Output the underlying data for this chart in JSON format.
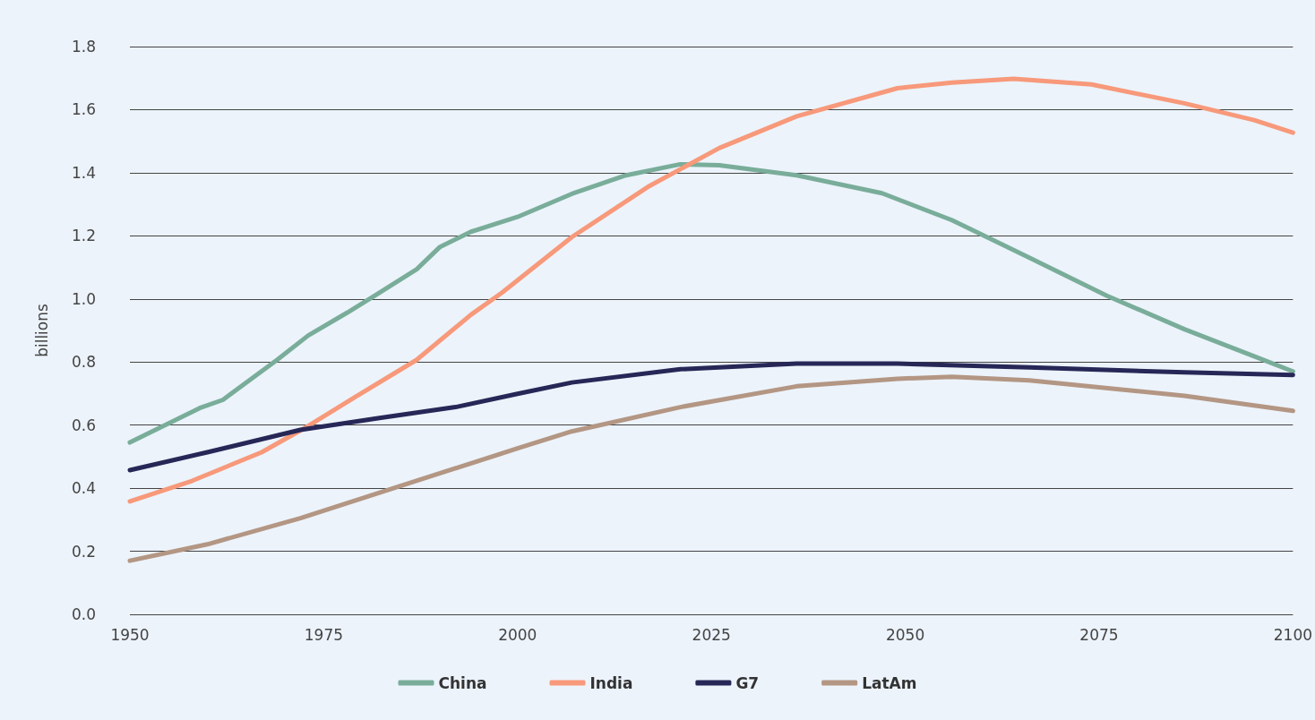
{
  "chart_data": {
    "type": "line",
    "ylabel": "billions",
    "xlim": [
      1950,
      2100
    ],
    "xticks": [
      1950,
      1975,
      2000,
      2025,
      2050,
      2075,
      2100
    ],
    "ylim": [
      0,
      1.8
    ],
    "yticks": [
      {
        "value": 0,
        "label": "0.0"
      },
      0.2,
      0.4,
      0.6,
      0.8,
      {
        "value": 1,
        "label": "1.0"
      },
      1.2,
      1.4,
      1.6,
      1.8
    ],
    "grid": "y",
    "legend": "bottom",
    "marker": "none",
    "line_style": "solid",
    "series": [
      {
        "name": "China",
        "color": "#79ad9a",
        "x": [
          1950,
          1959,
          1962,
          1969,
          1973,
          1978,
          1982,
          1987,
          1990,
          1994,
          2000,
          2007,
          2014,
          2021,
          2026,
          2036,
          2047,
          2056,
          2066,
          2076,
          2086,
          2095,
          2100
        ],
        "values": [
          0.545,
          0.654,
          0.68,
          0.807,
          0.884,
          0.956,
          1.017,
          1.094,
          1.165,
          1.213,
          1.26,
          1.333,
          1.392,
          1.427,
          1.424,
          1.392,
          1.335,
          1.25,
          1.131,
          1.01,
          0.904,
          0.818,
          0.77
        ]
      },
      {
        "name": "India",
        "color": "#f7997a",
        "x": [
          1950,
          1958,
          1967,
          1973,
          1979,
          1987,
          1994,
          1998,
          2007,
          2017,
          2026,
          2036,
          2049,
          2056,
          2064,
          2074,
          2086,
          2095,
          2100
        ],
        "values": [
          0.358,
          0.423,
          0.514,
          0.597,
          0.688,
          0.807,
          0.95,
          1.02,
          1.196,
          1.358,
          1.478,
          1.579,
          1.668,
          1.686,
          1.698,
          1.68,
          1.62,
          1.567,
          1.527
        ]
      },
      {
        "name": "G7",
        "color": "#272757",
        "x": [
          1950,
          1960,
          1972,
          1982,
          1992,
          2000,
          2007,
          2021,
          2036,
          2049,
          2066,
          2086,
          2100
        ],
        "values": [
          0.457,
          0.514,
          0.585,
          0.622,
          0.657,
          0.699,
          0.735,
          0.777,
          0.795,
          0.795,
          0.783,
          0.767,
          0.759
        ]
      },
      {
        "name": "LatAm",
        "color": "#b39683",
        "x": [
          1950,
          1960,
          1972,
          1984,
          2000,
          2007,
          2021,
          2036,
          2049,
          2056,
          2066,
          2086,
          2100
        ],
        "values": [
          0.17,
          0.222,
          0.305,
          0.4,
          0.526,
          0.58,
          0.657,
          0.723,
          0.747,
          0.753,
          0.742,
          0.693,
          0.645
        ]
      }
    ]
  }
}
